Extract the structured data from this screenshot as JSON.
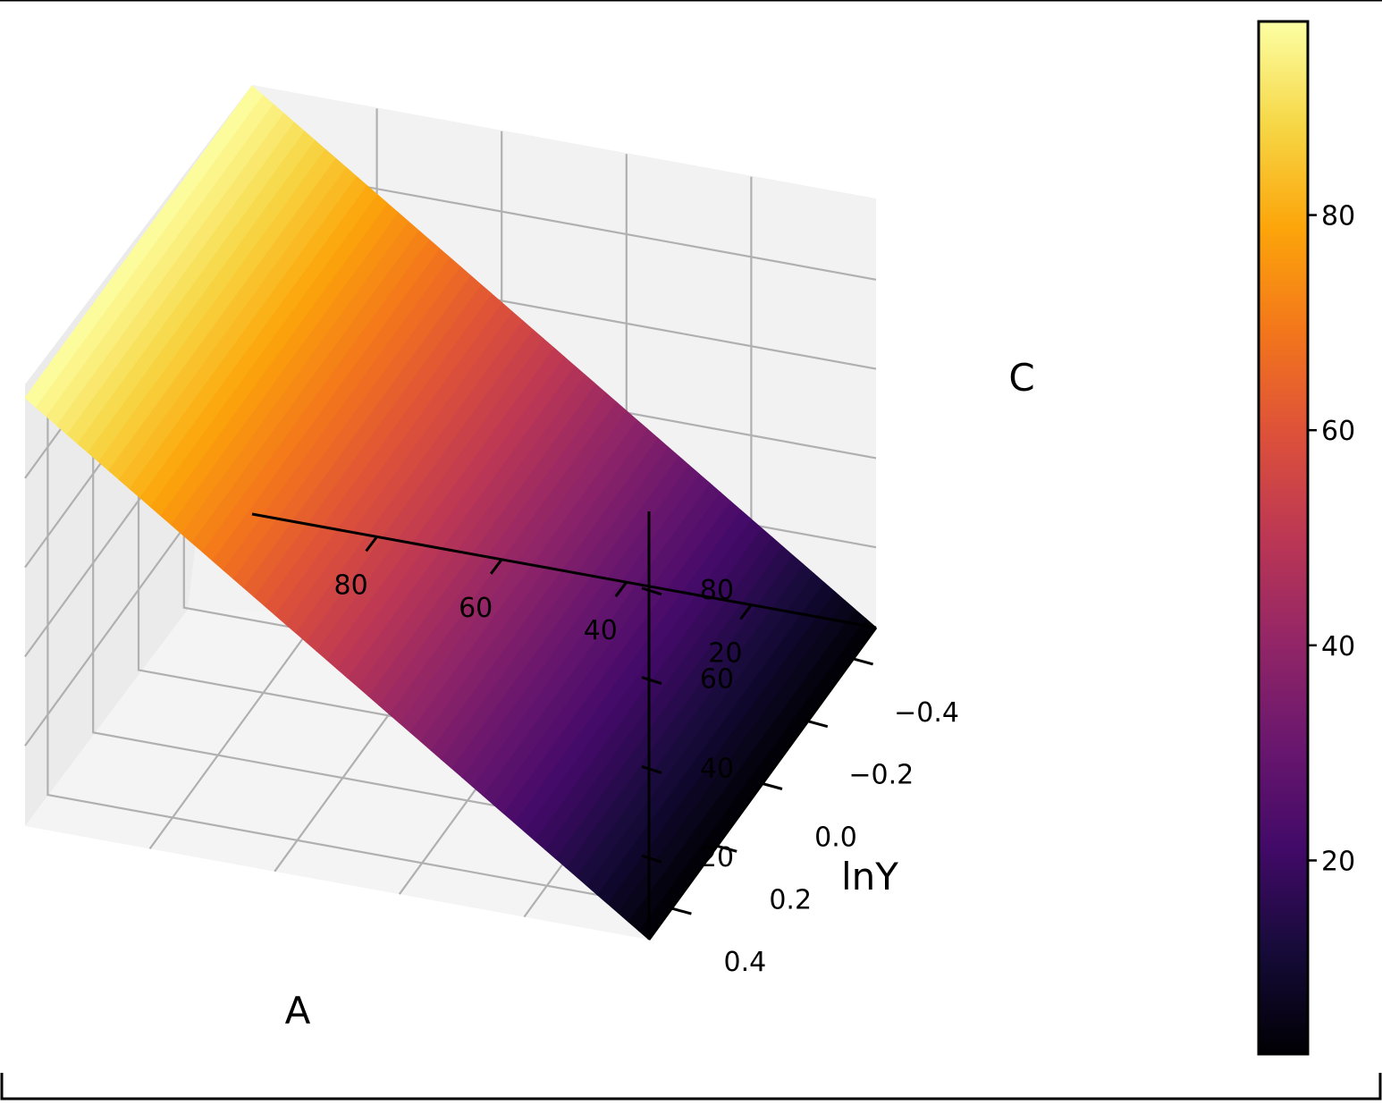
{
  "chart_data": {
    "type": "surface3d",
    "title": "",
    "colormap": "inferno",
    "axes": {
      "x": {
        "label": "A",
        "ticks": [
          20,
          40,
          60,
          80
        ],
        "range": [
          0,
          100
        ]
      },
      "y": {
        "label": "lnY",
        "ticks": [
          -0.4,
          -0.2,
          0.0,
          0.2,
          0.4
        ],
        "tick_labels": [
          "−0.4",
          "−0.2",
          "0.0",
          "0.2",
          "0.4"
        ],
        "range": [
          -0.5,
          0.5
        ]
      },
      "z": {
        "label": "C",
        "ticks": [
          20,
          40,
          60,
          80
        ],
        "range": [
          2,
          98
        ]
      }
    },
    "surface": {
      "x_range": [
        0,
        100
      ],
      "y_range": [
        -0.5,
        0.5
      ],
      "z_range": [
        2,
        98
      ],
      "relation": "C increases linearly with A and is nearly independent of lnY"
    },
    "colorbar": {
      "ticks": [
        20,
        40,
        60,
        80
      ],
      "range": [
        2,
        98
      ]
    },
    "grid": true,
    "legend": "none"
  }
}
